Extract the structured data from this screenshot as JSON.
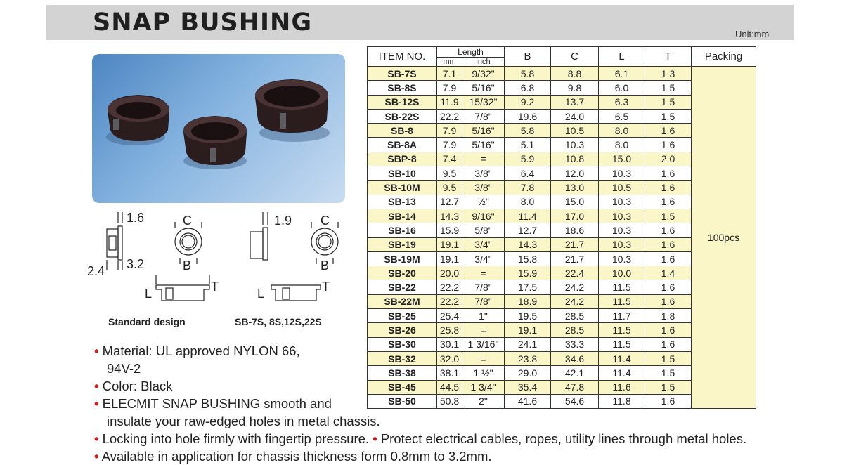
{
  "header": {
    "title": "SNAP BUSHING",
    "unit": "Unit:mm"
  },
  "diagram": {
    "left_label": "Standard design",
    "right_label": "SB-7S, 8S,12S,22S",
    "dims": {
      "left_top": "1.6",
      "left_c": "C",
      "left_b": "B",
      "left_bottom_a": "2.4",
      "left_bottom_b": "3.2",
      "left_l": "L",
      "left_t": "T",
      "right_top": "1.9",
      "right_c": "C",
      "right_b": "B",
      "right_l": "L",
      "right_t": "T"
    }
  },
  "bullets": [
    "Material: UL approved NYLON 66,",
    "94V-2",
    "Color:  Black",
    "ELECMIT SNAP BUSHING smooth and",
    "insulate your raw-edged holes in metal chassis.",
    "Locking into hole firmly with fingertip pressure.",
    "Protect electrical cables, ropes, utility lines through metal holes.",
    "Available in application for chassis thickness form 0.8mm to 3.2mm."
  ],
  "table": {
    "headers": {
      "item": "ITEM NO.",
      "length": "Length",
      "mm": "mm",
      "inch": "inch",
      "b": "B",
      "c": "C",
      "l": "L",
      "t": "T",
      "packing": "Packing"
    },
    "packing_value": "100pcs",
    "rows": [
      [
        "SB-7S",
        "7.1",
        "9/32\"",
        "5.8",
        "8.8",
        "6.1",
        "1.3"
      ],
      [
        "SB-8S",
        "7.9",
        "5/16\"",
        "6.8",
        "9.8",
        "6.0",
        "1.5"
      ],
      [
        "SB-12S",
        "11.9",
        "15/32\"",
        "9.2",
        "13.7",
        "6.3",
        "1.5"
      ],
      [
        "SB-22S",
        "22.2",
        "7/8\"",
        "19.6",
        "24.0",
        "6.5",
        "1.5"
      ],
      [
        "SB-8",
        "7.9",
        "5/16\"",
        "5.8",
        "10.5",
        "8.0",
        "1.6"
      ],
      [
        "SB-8A",
        "7.9",
        "5/16\"",
        "5.1",
        "10.3",
        "8.0",
        "1.6"
      ],
      [
        "SBP-8",
        "7.4",
        "=",
        "5.9",
        "10.8",
        "15.0",
        "2.0"
      ],
      [
        "SB-10",
        "9.5",
        "3/8\"",
        "6.4",
        "12.0",
        "10.3",
        "1.6"
      ],
      [
        "SB-10M",
        "9.5",
        "3/8\"",
        "7.8",
        "13.0",
        "10.5",
        "1.6"
      ],
      [
        "SB-13",
        "12.7",
        "½\"",
        "8.0",
        "15.0",
        "10.3",
        "1.6"
      ],
      [
        "SB-14",
        "14.3",
        "9/16\"",
        "11.4",
        "17.0",
        "10.3",
        "1.5"
      ],
      [
        "SB-16",
        "15.9",
        "5/8\"",
        "12.7",
        "18.6",
        "10.3",
        "1.6"
      ],
      [
        "SB-19",
        "19.1",
        "3/4\"",
        "14.3",
        "21.7",
        "10.3",
        "1.6"
      ],
      [
        "SB-19M",
        "19.1",
        "3/4\"",
        "15.8",
        "21.7",
        "10.3",
        "1.6"
      ],
      [
        "SB-20",
        "20.0",
        "=",
        "15.9",
        "22.4",
        "10.0",
        "1.4"
      ],
      [
        "SB-22",
        "22.2",
        "7/8\"",
        "17.5",
        "24.2",
        "11.5",
        "1.6"
      ],
      [
        "SB-22M",
        "22.2",
        "7/8\"",
        "18.9",
        "24.2",
        "11.5",
        "1.6"
      ],
      [
        "SB-25",
        "25.4",
        "1\"",
        "19.5",
        "28.5",
        "11.7",
        "1.8"
      ],
      [
        "SB-26",
        "25.8",
        "=",
        "19.1",
        "28.5",
        "11.5",
        "1.6"
      ],
      [
        "SB-30",
        "30.1",
        "1 3/16\"",
        "24.1",
        "33.3",
        "11.5",
        "1.6"
      ],
      [
        "SB-32",
        "32.0",
        "=",
        "23.8",
        "34.6",
        "11.4",
        "1.5"
      ],
      [
        "SB-38",
        "38.1",
        "1 ½\"",
        "29.0",
        "42.1",
        "11.4",
        "1.5"
      ],
      [
        "SB-45",
        "44.5",
        "1 3/4\"",
        "35.4",
        "47.8",
        "11.6",
        "1.5"
      ],
      [
        "SB-50",
        "50.8",
        "2\"",
        "41.6",
        "54.6",
        "11.8",
        "1.6"
      ]
    ]
  }
}
